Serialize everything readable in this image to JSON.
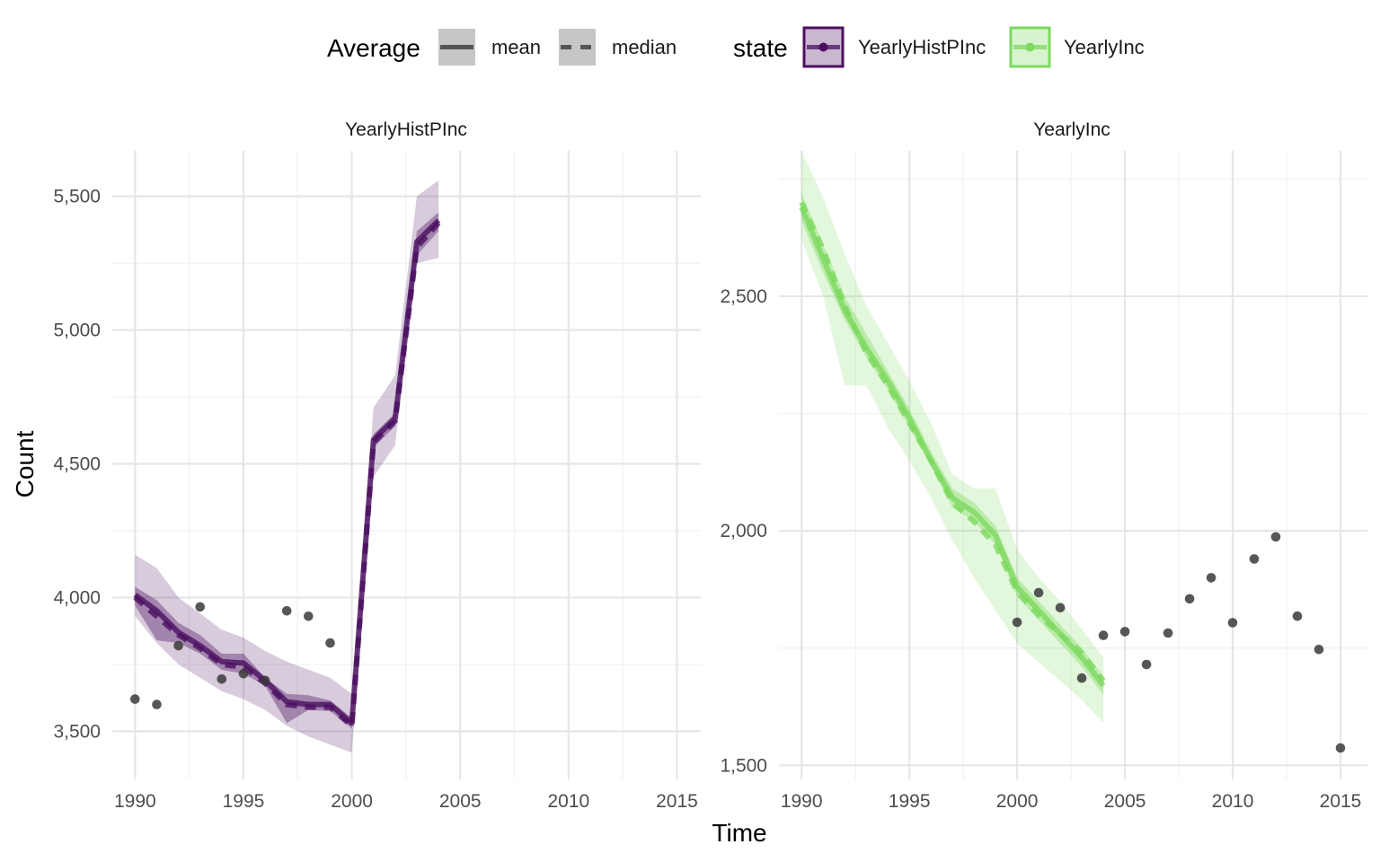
{
  "chart_data": {
    "type": "line",
    "xlabel": "Time",
    "ylabel": "Count",
    "legend": {
      "placement": "top",
      "average": {
        "title": "Average",
        "items": [
          {
            "label": "mean",
            "linetype": "solid"
          },
          {
            "label": "median",
            "linetype": "dashed"
          }
        ]
      },
      "state": {
        "title": "state",
        "items": [
          {
            "label": "YearlyHistPInc",
            "color": "#4b1060"
          },
          {
            "label": "YearlyInc",
            "color": "#7dd95f"
          }
        ]
      }
    },
    "grid": true,
    "point_color": "#3a3a3a",
    "panels": [
      {
        "title": "YearlyHistPInc",
        "color": "#4b1060",
        "xlim": [
          1988.95,
          2016.1
        ],
        "ylim": [
          3320,
          5670
        ],
        "x_ticks": [
          1990,
          1995,
          2000,
          2005,
          2010,
          2015
        ],
        "x_tick_labels": [
          "1990",
          "1995",
          "2000",
          "2005",
          "2010",
          "2015"
        ],
        "y_ticks": [
          3500,
          4000,
          4500,
          5000,
          5500
        ],
        "y_tick_labels": [
          "3,500",
          "4,000",
          "4,500",
          "5,000",
          "5,500"
        ],
        "x": [
          1990,
          1991,
          1992,
          1993,
          1994,
          1995,
          1996,
          1997,
          1998,
          1999,
          2000,
          2001,
          2002,
          2003,
          2004
        ],
        "mean": [
          4010,
          3950,
          3870,
          3820,
          3760,
          3755,
          3690,
          3610,
          3600,
          3600,
          3530,
          4590,
          4670,
          5330,
          5410
        ],
        "median": [
          4000,
          3930,
          3860,
          3810,
          3750,
          3740,
          3680,
          3600,
          3590,
          3590,
          3520,
          4580,
          4660,
          5310,
          5400
        ],
        "inner_lower": [
          3970,
          3840,
          3830,
          3790,
          3730,
          3715,
          3670,
          3530,
          3580,
          3575,
          3510,
          4560,
          4640,
          5280,
          5370
        ],
        "inner_upper": [
          4040,
          3990,
          3905,
          3860,
          3790,
          3790,
          3700,
          3640,
          3635,
          3615,
          3550,
          4610,
          4690,
          5370,
          5440
        ],
        "outer_lower": [
          3930,
          3830,
          3750,
          3700,
          3650,
          3620,
          3580,
          3520,
          3480,
          3450,
          3420,
          4450,
          4570,
          5250,
          5270
        ],
        "outer_upper": [
          4160,
          4110,
          4000,
          3940,
          3880,
          3850,
          3800,
          3760,
          3730,
          3700,
          3640,
          4710,
          4830,
          5500,
          5560
        ],
        "observed_x": [
          1990,
          1991,
          1992,
          1993,
          1994,
          1995,
          1996,
          1997,
          1998,
          1999
        ],
        "observed_y": [
          3620,
          3600,
          3820,
          3965,
          3695,
          3715,
          3690,
          3950,
          3930,
          3830
        ]
      },
      {
        "title": "YearlyInc",
        "color": "#7dd95f",
        "xlim": [
          1988.95,
          2016.25
        ],
        "ylim": [
          1470,
          2810
        ],
        "x_ticks": [
          1990,
          1995,
          2000,
          2005,
          2010,
          2015
        ],
        "x_tick_labels": [
          "1990",
          "1995",
          "2000",
          "2005",
          "2010",
          "2015"
        ],
        "y_ticks": [
          1500,
          2000,
          2500
        ],
        "y_tick_labels": [
          "1,500",
          "2,000",
          "2,500"
        ],
        "x": [
          1990,
          1991,
          1992,
          1993,
          1994,
          1995,
          1996,
          1997,
          1998,
          1999,
          2000,
          2001,
          2002,
          2003,
          2004
        ],
        "mean": [
          2690,
          2580,
          2470,
          2390,
          2320,
          2240,
          2150,
          2070,
          2040,
          1990,
          1880,
          1830,
          1780,
          1730,
          1670
        ],
        "median": [
          2700,
          2600,
          2480,
          2380,
          2310,
          2230,
          2150,
          2060,
          2020,
          1970,
          1870,
          1820,
          1780,
          1740,
          1680
        ],
        "inner_lower": [
          2660,
          2550,
          2450,
          2370,
          2300,
          2220,
          2140,
          2050,
          2020,
          1970,
          1860,
          1810,
          1760,
          1710,
          1650
        ],
        "inner_upper": [
          2720,
          2610,
          2500,
          2420,
          2340,
          2260,
          2170,
          2090,
          2060,
          2010,
          1900,
          1850,
          1800,
          1750,
          1690
        ],
        "outer_lower": [
          2620,
          2500,
          2310,
          2310,
          2220,
          2150,
          2070,
          1980,
          1900,
          1830,
          1760,
          1720,
          1680,
          1640,
          1590
        ],
        "outer_upper": [
          2810,
          2710,
          2590,
          2480,
          2400,
          2320,
          2230,
          2120,
          2090,
          2090,
          1960,
          1900,
          1850,
          1790,
          1730
        ],
        "observed_x": [
          2000,
          2001,
          2002,
          2003,
          2004,
          2005,
          2006,
          2007,
          2008,
          2009,
          2010,
          2011,
          2012,
          2013,
          2014,
          2015
        ],
        "observed_y": [
          1805,
          1868,
          1836,
          1686,
          1777,
          1785,
          1715,
          1782,
          1855,
          1900,
          1804,
          1940,
          1987,
          1818,
          1747,
          1537
        ]
      }
    ]
  }
}
